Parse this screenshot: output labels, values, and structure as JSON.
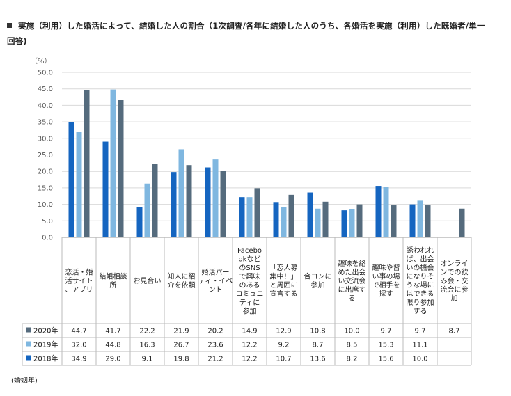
{
  "title": "実施（利用）した婚活によって、結婚した人の割合（1次調査/各年に結婚した人のうち、各婚活を実施（利用）した既婚者/単一回答)",
  "chart_data": {
    "type": "bar",
    "ylabel": "（%）",
    "xlabel": "(婚姻年)",
    "ylim": [
      0,
      50
    ],
    "y_ticks": [
      "0.0",
      "5.0",
      "10.0",
      "15.0",
      "20.0",
      "25.0",
      "30.0",
      "35.0",
      "40.0",
      "45.0",
      "50.0"
    ],
    "grid": true,
    "legend": "table-left",
    "categories": [
      [
        "恋活・婚",
        "活サイト",
        "、アプリ"
      ],
      [
        "結婚相談",
        "所"
      ],
      [
        "お見合い"
      ],
      [
        "知人に紹",
        "介を依頼"
      ],
      [
        "婚活パー",
        "ティ・イベ",
        "ント"
      ],
      [
        "Facebo",
        "okなど",
        "のSNS",
        "で興味",
        "のある",
        "コミュニ",
        "ティに",
        "参加"
      ],
      [
        "「恋人募",
        "集中！」",
        "と周囲に",
        "宣言する"
      ],
      [
        "合コンに",
        "参加"
      ],
      [
        "趣味を絡",
        "めた出会",
        "い交流会",
        "に出席す",
        "る"
      ],
      [
        "趣味や習",
        "い事の場",
        "で相手を",
        "探す"
      ],
      [
        "誘われれ",
        "ば、出会",
        "いの機会",
        "になりそ",
        "うな場に",
        "はできる",
        "限り参加",
        "する"
      ],
      [
        "オンライ",
        "ンでの飲",
        "み会・交",
        "流会に参",
        "加"
      ]
    ],
    "series": [
      {
        "name": "2018年",
        "color": "#1565c0",
        "values": [
          34.9,
          29.0,
          9.1,
          19.8,
          21.2,
          12.2,
          10.7,
          13.6,
          8.2,
          15.6,
          10.0,
          null
        ],
        "labels": [
          "34.9",
          "29.0",
          "9.1",
          "19.8",
          "21.2",
          "12.2",
          "10.7",
          "13.6",
          "8.2",
          "15.6",
          "10.0",
          ""
        ]
      },
      {
        "name": "2019年",
        "color": "#7fb7e0",
        "values": [
          32.0,
          44.8,
          16.3,
          26.7,
          23.6,
          12.2,
          9.2,
          8.7,
          8.5,
          15.3,
          11.1,
          null
        ],
        "labels": [
          "32.0",
          "44.8",
          "16.3",
          "26.7",
          "23.6",
          "12.2",
          "9.2",
          "8.7",
          "8.5",
          "15.3",
          "11.1",
          ""
        ]
      },
      {
        "name": "2020年",
        "color": "#556b7d",
        "values": [
          44.7,
          41.7,
          22.2,
          21.9,
          20.2,
          14.9,
          12.9,
          10.8,
          10.0,
          9.7,
          9.7,
          8.7
        ],
        "labels": [
          "44.7",
          "41.7",
          "22.2",
          "21.9",
          "20.2",
          "14.9",
          "12.9",
          "10.8",
          "10.0",
          "9.7",
          "9.7",
          "8.7"
        ]
      }
    ],
    "table_row_order": [
      "2020年",
      "2019年",
      "2018年"
    ]
  }
}
